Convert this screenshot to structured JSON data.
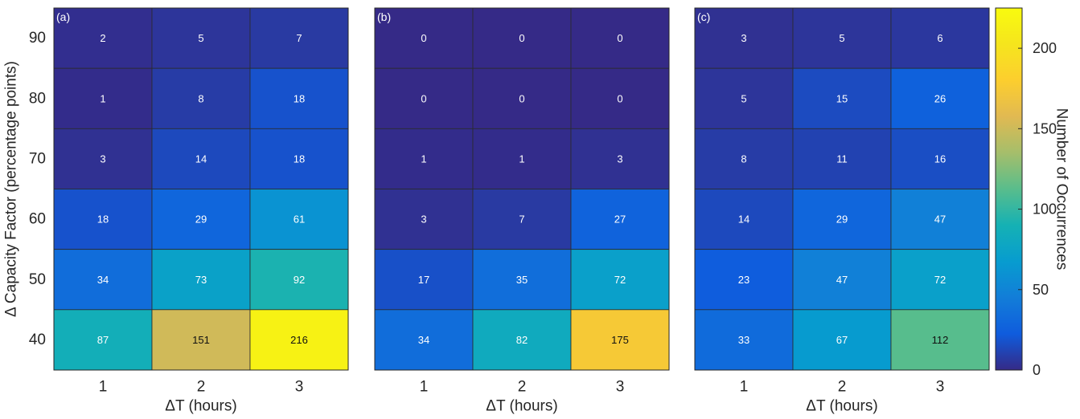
{
  "chart_data": {
    "type": "heatmap",
    "colorbar": {
      "label": "Number of Occurrences",
      "range": [
        0,
        225
      ],
      "ticks": [
        0,
        50,
        100,
        150,
        200
      ],
      "colormap": "parula"
    },
    "panels": [
      {
        "label": "(a)",
        "xlabel": "ΔT (hours)",
        "ylabel": "Δ Capacity Factor (percentage points)",
        "x_categories": [
          "1",
          "2",
          "3"
        ],
        "y_categories": [
          "90",
          "80",
          "70",
          "60",
          "50",
          "40"
        ],
        "values": [
          [
            2,
            5,
            7
          ],
          [
            1,
            8,
            18
          ],
          [
            3,
            14,
            18
          ],
          [
            18,
            29,
            61
          ],
          [
            34,
            73,
            92
          ],
          [
            87,
            151,
            216
          ]
        ]
      },
      {
        "label": "(b)",
        "xlabel": "ΔT (hours)",
        "ylabel": "",
        "x_categories": [
          "1",
          "2",
          "3"
        ],
        "y_categories": [
          "90",
          "80",
          "70",
          "60",
          "50",
          "40"
        ],
        "values": [
          [
            0,
            0,
            0
          ],
          [
            0,
            0,
            0
          ],
          [
            1,
            1,
            3
          ],
          [
            3,
            7,
            27
          ],
          [
            17,
            35,
            72
          ],
          [
            34,
            82,
            175
          ]
        ]
      },
      {
        "label": "(c)",
        "xlabel": "ΔT (hours)",
        "ylabel": "",
        "x_categories": [
          "1",
          "2",
          "3"
        ],
        "y_categories": [
          "90",
          "80",
          "70",
          "60",
          "50",
          "40"
        ],
        "values": [
          [
            3,
            5,
            6
          ],
          [
            5,
            15,
            26
          ],
          [
            8,
            11,
            16
          ],
          [
            14,
            29,
            47
          ],
          [
            23,
            47,
            72
          ],
          [
            33,
            67,
            112
          ]
        ]
      }
    ]
  }
}
